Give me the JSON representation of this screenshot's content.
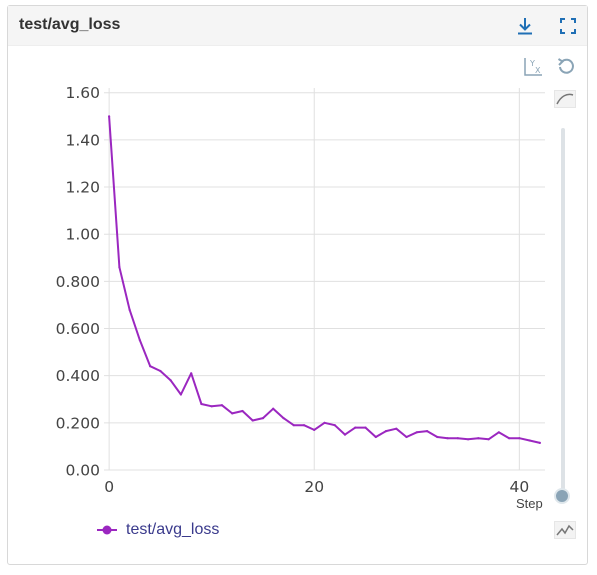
{
  "card": {
    "title": "test/avg_loss",
    "download_icon": "download-icon",
    "fullscreen_icon": "fullscreen-icon",
    "axis_swap_icon": "axis-swap-icon",
    "reset_icon": "reset-icon",
    "smoothing_icon": "smoothing-curve-icon",
    "raw_icon": "raw-line-icon"
  },
  "colors": {
    "series": "#9b27c0",
    "grid": "#e0e0e0",
    "accent_icon": "#1f6fb5",
    "slider": "#8aa4b6"
  },
  "slider": {
    "label": "Step"
  },
  "chart_data": {
    "type": "line",
    "title": "test/avg_loss",
    "xlabel": "",
    "ylabel": "",
    "xlim": [
      -0.5,
      42.5
    ],
    "ylim": [
      0,
      1.62
    ],
    "x_ticks": [
      "0",
      "20",
      "40"
    ],
    "x_tick_values": [
      0,
      20,
      40
    ],
    "y_ticks": [
      "0.00",
      "0.200",
      "0.400",
      "0.600",
      "0.800",
      "1.00",
      "1.20",
      "1.40",
      "1.60"
    ],
    "y_tick_values": [
      0,
      0.2,
      0.4,
      0.6,
      0.8,
      1.0,
      1.2,
      1.4,
      1.6
    ],
    "grid": true,
    "legend_position": "bottom-left",
    "series": [
      {
        "name": "test/avg_loss",
        "x": [
          0,
          1,
          2,
          3,
          4,
          5,
          6,
          7,
          8,
          9,
          10,
          11,
          12,
          13,
          14,
          15,
          16,
          17,
          18,
          19,
          20,
          21,
          22,
          23,
          24,
          25,
          26,
          27,
          28,
          29,
          30,
          31,
          32,
          33,
          34,
          35,
          36,
          37,
          38,
          39,
          40,
          41,
          42
        ],
        "y": [
          1.5,
          0.86,
          0.68,
          0.55,
          0.44,
          0.42,
          0.38,
          0.32,
          0.41,
          0.28,
          0.27,
          0.275,
          0.24,
          0.25,
          0.21,
          0.22,
          0.26,
          0.22,
          0.19,
          0.19,
          0.17,
          0.2,
          0.19,
          0.15,
          0.18,
          0.18,
          0.14,
          0.165,
          0.175,
          0.14,
          0.16,
          0.165,
          0.14,
          0.135,
          0.135,
          0.13,
          0.135,
          0.13,
          0.16,
          0.135,
          0.135,
          0.125,
          0.115
        ]
      }
    ]
  }
}
